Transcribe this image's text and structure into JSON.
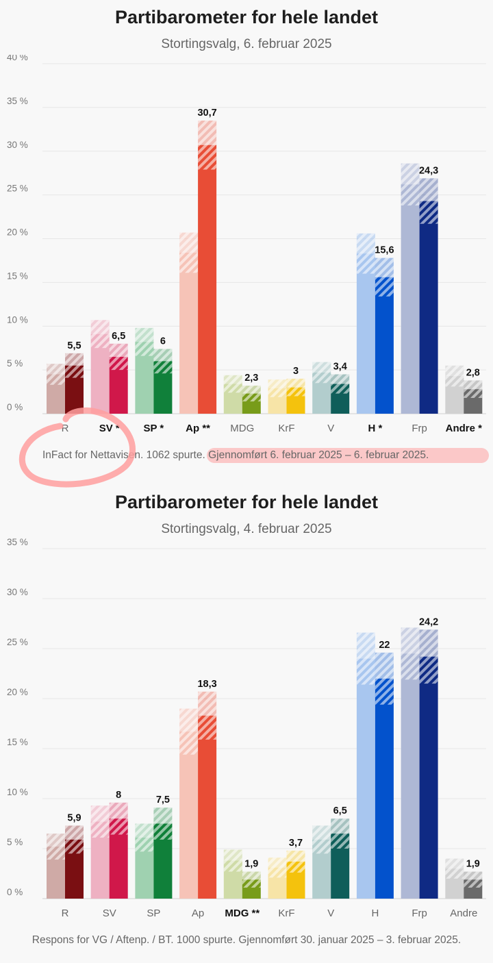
{
  "chart_data": [
    {
      "type": "bar",
      "title": "Partibarometer for hele landet",
      "subtitle": "Stortingsvalg, 6. februar 2025",
      "source": "InFact for Nettavisen. 1062 spurte. Gjennomført 6. februar 2025 – 6. februar 2025.",
      "ylim": [
        0,
        40
      ],
      "yticks": [
        0,
        5,
        10,
        15,
        20,
        25,
        30,
        35,
        40
      ],
      "ytick_labels": [
        "0 %",
        "5 %",
        "10 %",
        "15 %",
        "20 %",
        "25 %",
        "30 %",
        "35 %",
        "40 %"
      ],
      "grid": true,
      "categories": [
        "R",
        "SV *",
        "SP *",
        "Ap **",
        "MDG",
        "KrF",
        "V",
        "H *",
        "Frp",
        "Andre *"
      ],
      "category_bold": [
        false,
        true,
        true,
        true,
        false,
        false,
        false,
        true,
        false,
        true
      ],
      "series": [
        {
          "values": [
            4.5,
            9.1,
            8.2,
            18.4,
            3.4,
            2.9,
            4.7,
            18.3,
            26.2,
            4.3
          ],
          "error": [
            1.2,
            1.6,
            1.6,
            2.3,
            1.0,
            1.0,
            1.2,
            2.3,
            2.4,
            1.2
          ]
        },
        {
          "values": [
            5.5,
            6.5,
            6.0,
            30.7,
            2.3,
            3.0,
            3.4,
            15.6,
            24.3,
            2.8
          ],
          "error": [
            1.4,
            1.5,
            1.4,
            2.8,
            0.9,
            1.0,
            1.1,
            2.2,
            2.6,
            1.0
          ]
        }
      ],
      "data_labels": [
        "5,5",
        "6,5",
        "6",
        "30,7",
        "2,3",
        "3",
        "3,4",
        "15,6",
        "24,3",
        "2,8"
      ]
    },
    {
      "type": "bar",
      "title": "Partibarometer for hele landet",
      "subtitle": "Stortingsvalg, 4. februar 2025",
      "source": "Respons for VG / Aftenp. / BT. 1000 spurte. Gjennomført 30. januar 2025 – 3. februar 2025.",
      "ylim": [
        0,
        35
      ],
      "yticks": [
        0,
        5,
        10,
        15,
        20,
        25,
        30,
        35
      ],
      "ytick_labels": [
        "0 %",
        "5 %",
        "10 %",
        "15 %",
        "20 %",
        "25 %",
        "30 %",
        "35 %"
      ],
      "grid": true,
      "categories": [
        "R",
        "SV",
        "SP",
        "Ap",
        "MDG **",
        "KrF",
        "V",
        "H",
        "Frp",
        "Andre"
      ],
      "category_bold": [
        false,
        false,
        false,
        false,
        true,
        false,
        false,
        false,
        false,
        false
      ],
      "series": [
        {
          "values": [
            5.2,
            7.7,
            6.1,
            16.7,
            3.8,
            3.1,
            5.9,
            24.0,
            24.5,
            3.0
          ],
          "error": [
            1.3,
            1.6,
            1.4,
            2.3,
            1.1,
            1.0,
            1.4,
            2.6,
            2.6,
            1.0
          ]
        },
        {
          "values": [
            5.9,
            8.0,
            7.5,
            18.3,
            1.9,
            3.7,
            6.5,
            22.0,
            24.2,
            1.9
          ],
          "error": [
            1.4,
            1.6,
            1.6,
            2.4,
            0.8,
            1.1,
            1.5,
            2.6,
            2.7,
            0.8
          ]
        }
      ],
      "data_labels": [
        "5,9",
        "8",
        "7,5",
        "18,3",
        "1,9",
        "3,7",
        "6,5",
        "22",
        "24,2",
        "1,9"
      ]
    }
  ],
  "colors": {
    "current": [
      "#7a0f12",
      "#d0184a",
      "#10803a",
      "#e84d36",
      "#789c1a",
      "#f4c20d",
      "#0f5e5a",
      "#0352cc",
      "#0f2a84",
      "#6a6a6a"
    ],
    "previous": [
      "#cfaaa6",
      "#eeb1c2",
      "#9fd1b0",
      "#f6c3b7",
      "#cfdba7",
      "#f7e4a7",
      "#b2cdcd",
      "#a8c6ef",
      "#aeb8d5",
      "#d1d1d1"
    ],
    "annotation": "#ff9f9f"
  }
}
